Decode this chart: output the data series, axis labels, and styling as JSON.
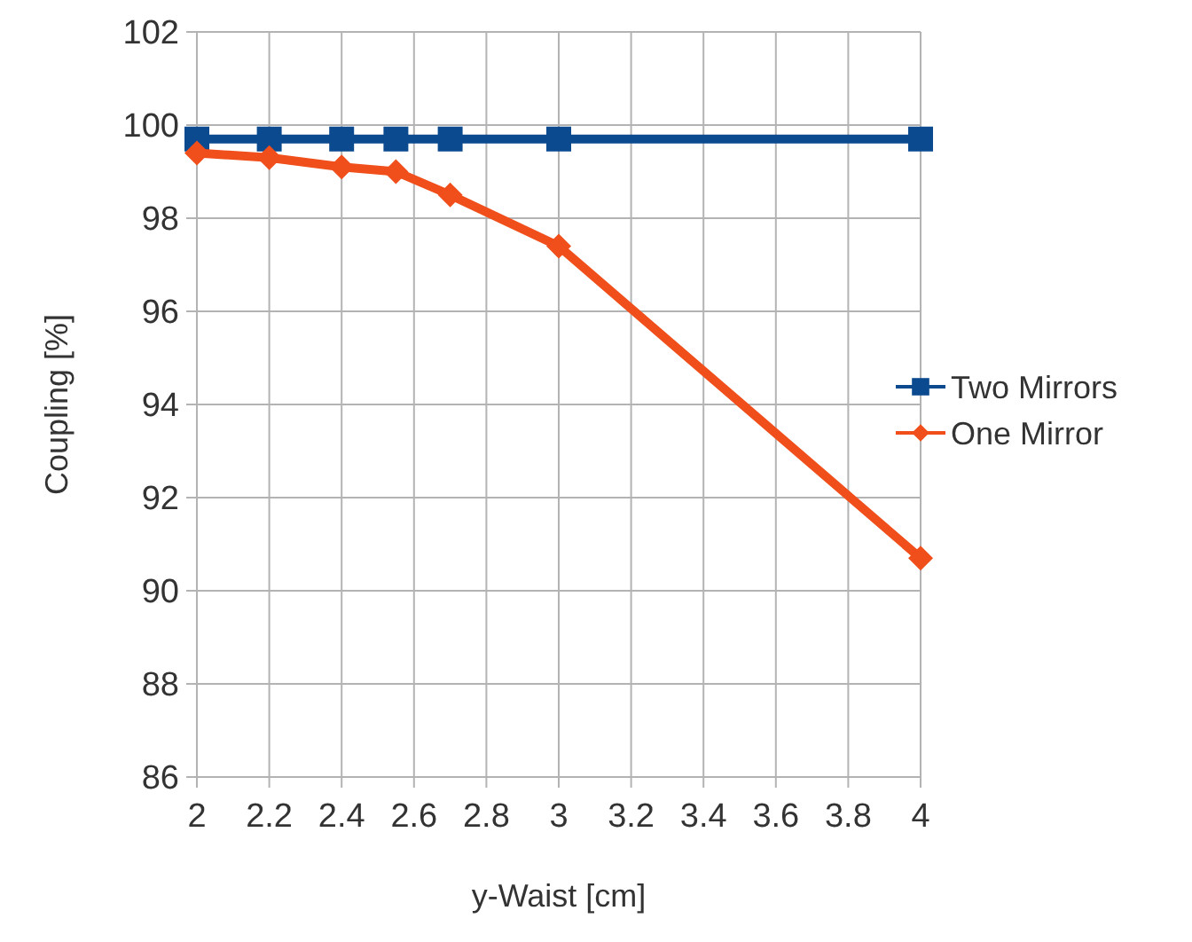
{
  "chart_data": {
    "type": "line",
    "xlabel": "y-Waist [cm]",
    "ylabel": "Coupling [%]",
    "x": [
      2,
      2.2,
      2.4,
      2.55,
      2.7,
      3,
      4
    ],
    "series": [
      {
        "name": "Two Mirrors",
        "color": "#0b4a8f",
        "marker": "square",
        "values": [
          99.7,
          99.7,
          99.7,
          99.7,
          99.7,
          99.7,
          99.7
        ]
      },
      {
        "name": "One Mirror",
        "color": "#f04e1a",
        "marker": "diamond",
        "values": [
          99.4,
          99.3,
          99.1,
          99.0,
          98.5,
          97.4,
          90.7
        ]
      }
    ],
    "xlim": [
      2,
      4
    ],
    "xticks": [
      2,
      2.2,
      2.4,
      2.6,
      2.8,
      3,
      3.2,
      3.4,
      3.6,
      3.8,
      4
    ],
    "ylim": [
      86,
      102
    ],
    "yticks": [
      86,
      88,
      90,
      92,
      94,
      96,
      98,
      100,
      102
    ],
    "grid": true,
    "legend": "right"
  }
}
